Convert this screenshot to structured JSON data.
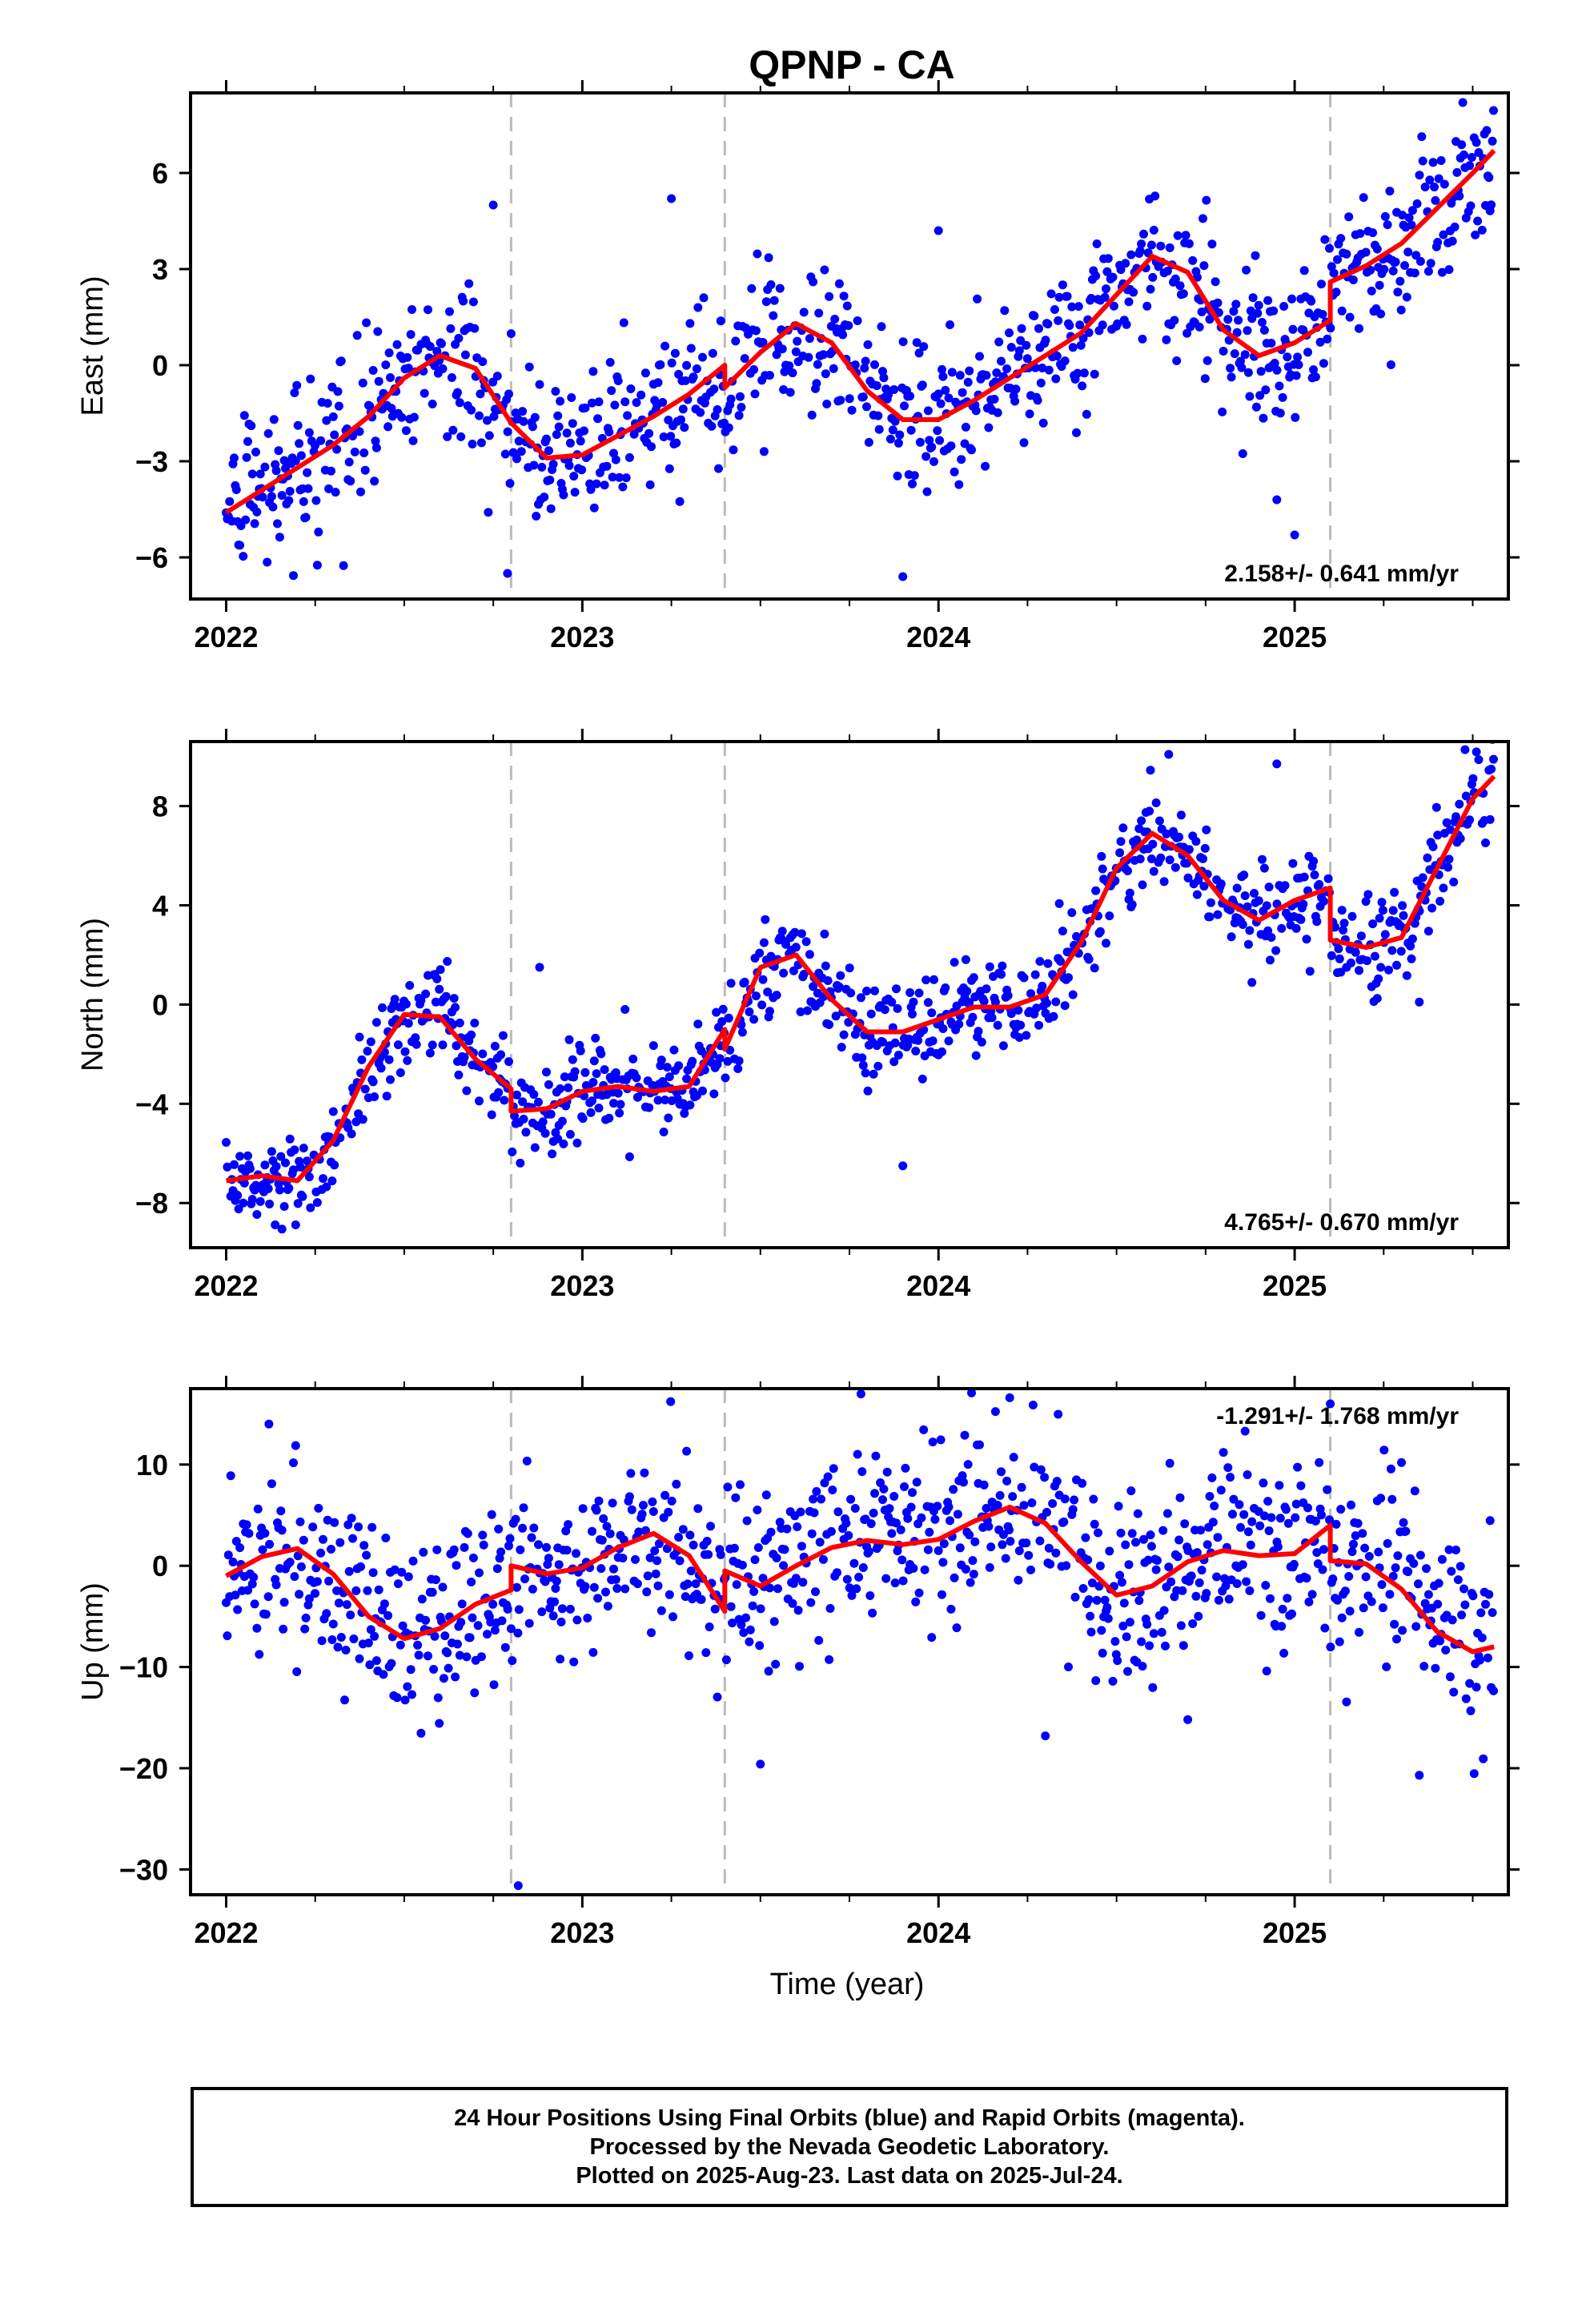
{
  "title": "QPNP - CA",
  "xlabel": "Time (year)",
  "footer": {
    "line1": "24 Hour Positions Using Final Orbits (blue) and Rapid Orbits (magenta).",
    "line2": "Processed by the Nevada Geodetic Laboratory.",
    "line3": "Plotted on 2025-Aug-23. Last data on 2025-Jul-24."
  },
  "colors": {
    "data_points": "#0000ff",
    "model_fit": "#ff0000",
    "event_lines": "#bbbbbb"
  },
  "chart_data": [
    {
      "type": "scatter",
      "name": "east",
      "ylabel": "East (mm)",
      "xlim": [
        1.9,
        5.6
      ],
      "ylim": [
        -7.3,
        8.5
      ],
      "xticks": [
        {
          "value": 2.0,
          "label": "2022"
        },
        {
          "value": 3.0,
          "label": "2023"
        },
        {
          "value": 4.0,
          "label": "2024"
        },
        {
          "value": 5.0,
          "label": "2025"
        }
      ],
      "yticks": [
        {
          "value": -6,
          "label": "−6"
        },
        {
          "value": -3,
          "label": "−3"
        },
        {
          "value": 0,
          "label": "0"
        },
        {
          "value": 3,
          "label": "3"
        },
        {
          "value": 6,
          "label": "6"
        }
      ],
      "rate_text": "2.158+/- 0.641 mm/yr",
      "rate_position": "bottom-right",
      "event_lines": [
        2.8,
        3.4,
        5.1
      ],
      "scatter_sigma": 1.15,
      "outliers": [
        [
          2.75,
          5.0
        ],
        [
          2.79,
          -6.5
        ],
        [
          3.25,
          5.2
        ],
        [
          3.9,
          -6.6
        ],
        [
          4.0,
          4.2
        ],
        [
          5.0,
          -5.3
        ],
        [
          4.95,
          -4.2
        ]
      ],
      "fit": [
        [
          2.0,
          -4.6
        ],
        [
          2.1,
          -3.9
        ],
        [
          2.2,
          -3.2
        ],
        [
          2.3,
          -2.5
        ],
        [
          2.4,
          -1.6
        ],
        [
          2.5,
          -0.4
        ],
        [
          2.6,
          0.3
        ],
        [
          2.7,
          -0.1
        ],
        [
          2.8,
          -1.8
        ],
        [
          2.9,
          -2.9
        ],
        [
          3.0,
          -2.8
        ],
        [
          3.1,
          -2.2
        ],
        [
          3.2,
          -1.6
        ],
        [
          3.3,
          -0.9
        ],
        [
          3.4,
          0.0
        ],
        [
          3.4,
          -0.7
        ],
        [
          3.5,
          0.4
        ],
        [
          3.6,
          1.3
        ],
        [
          3.7,
          0.7
        ],
        [
          3.8,
          -0.8
        ],
        [
          3.9,
          -1.7
        ],
        [
          4.0,
          -1.7
        ],
        [
          4.1,
          -1.1
        ],
        [
          4.2,
          -0.4
        ],
        [
          4.3,
          0.3
        ],
        [
          4.4,
          1.0
        ],
        [
          4.5,
          2.2
        ],
        [
          4.6,
          3.4
        ],
        [
          4.7,
          2.9
        ],
        [
          4.8,
          1.1
        ],
        [
          4.9,
          0.3
        ],
        [
          5.0,
          0.7
        ],
        [
          5.1,
          1.4
        ],
        [
          5.1,
          2.6
        ],
        [
          5.2,
          3.1
        ],
        [
          5.3,
          3.8
        ],
        [
          5.4,
          4.9
        ],
        [
          5.5,
          6.0
        ],
        [
          5.56,
          6.7
        ]
      ]
    },
    {
      "type": "scatter",
      "name": "north",
      "ylabel": "North (mm)",
      "xlim": [
        1.9,
        5.6
      ],
      "ylim": [
        -9.8,
        10.6
      ],
      "xticks": [
        {
          "value": 2.0,
          "label": "2022"
        },
        {
          "value": 3.0,
          "label": "2023"
        },
        {
          "value": 4.0,
          "label": "2024"
        },
        {
          "value": 5.0,
          "label": "2025"
        }
      ],
      "yticks": [
        {
          "value": -8,
          "label": "−8"
        },
        {
          "value": -4,
          "label": "−4"
        },
        {
          "value": 0,
          "label": "0"
        },
        {
          "value": 4,
          "label": "4"
        },
        {
          "value": 8,
          "label": "8"
        }
      ],
      "rate_text": "4.765+/- 0.670 mm/yr",
      "rate_position": "bottom-right",
      "event_lines": [
        2.8,
        3.4,
        5.1
      ],
      "scatter_sigma": 0.95,
      "outliers": [
        [
          3.9,
          -6.5
        ],
        [
          4.95,
          9.7
        ],
        [
          5.35,
          0.1
        ],
        [
          2.88,
          1.5
        ]
      ],
      "fit": [
        [
          2.0,
          -7.1
        ],
        [
          2.1,
          -6.9
        ],
        [
          2.2,
          -7.1
        ],
        [
          2.3,
          -5.5
        ],
        [
          2.4,
          -2.5
        ],
        [
          2.5,
          -0.4
        ],
        [
          2.6,
          -0.5
        ],
        [
          2.7,
          -2.2
        ],
        [
          2.8,
          -3.4
        ],
        [
          2.8,
          -4.3
        ],
        [
          2.9,
          -4.2
        ],
        [
          3.0,
          -3.5
        ],
        [
          3.1,
          -3.3
        ],
        [
          3.2,
          -3.5
        ],
        [
          3.3,
          -3.3
        ],
        [
          3.4,
          -1.0
        ],
        [
          3.4,
          -1.8
        ],
        [
          3.5,
          1.5
        ],
        [
          3.6,
          2.0
        ],
        [
          3.7,
          0.2
        ],
        [
          3.8,
          -1.1
        ],
        [
          3.9,
          -1.1
        ],
        [
          4.0,
          -0.6
        ],
        [
          4.1,
          -0.1
        ],
        [
          4.2,
          -0.1
        ],
        [
          4.3,
          0.4
        ],
        [
          4.4,
          2.5
        ],
        [
          4.5,
          5.5
        ],
        [
          4.6,
          6.9
        ],
        [
          4.7,
          6.0
        ],
        [
          4.8,
          4.2
        ],
        [
          4.9,
          3.4
        ],
        [
          5.0,
          4.2
        ],
        [
          5.1,
          4.7
        ],
        [
          5.1,
          2.6
        ],
        [
          5.2,
          2.3
        ],
        [
          5.3,
          2.7
        ],
        [
          5.4,
          5.5
        ],
        [
          5.5,
          8.3
        ],
        [
          5.56,
          9.2
        ]
      ]
    },
    {
      "type": "scatter",
      "name": "up",
      "ylabel": "Up (mm)",
      "xlim": [
        1.9,
        5.6
      ],
      "ylim": [
        -32.5,
        17.5
      ],
      "xticks": [
        {
          "value": 2.0,
          "label": "2022"
        },
        {
          "value": 3.0,
          "label": "2023"
        },
        {
          "value": 4.0,
          "label": "2024"
        },
        {
          "value": 5.0,
          "label": "2025"
        }
      ],
      "yticks": [
        {
          "value": -30,
          "label": "−30"
        },
        {
          "value": -20,
          "label": "−20"
        },
        {
          "value": -10,
          "label": "−10"
        },
        {
          "value": 0,
          "label": "0"
        },
        {
          "value": 10,
          "label": "10"
        }
      ],
      "rate_text": "-1.291+/- 1.768 mm/yr",
      "rate_position": "top-right",
      "event_lines": [
        2.8,
        3.4,
        5.1
      ],
      "scatter_sigma": 4.6,
      "outliers": [
        [
          2.82,
          -31.6
        ],
        [
          2.12,
          14.0
        ],
        [
          3.5,
          -19.6
        ],
        [
          4.2,
          16.6
        ],
        [
          5.35,
          -20.7
        ],
        [
          4.3,
          -16.8
        ],
        [
          4.7,
          -15.2
        ],
        [
          5.1,
          16.0
        ],
        [
          5.3,
          10.2
        ]
      ],
      "fit": [
        [
          2.0,
          -1.0
        ],
        [
          2.1,
          0.9
        ],
        [
          2.2,
          1.7
        ],
        [
          2.3,
          -0.8
        ],
        [
          2.4,
          -5.0
        ],
        [
          2.5,
          -7.2
        ],
        [
          2.6,
          -6.2
        ],
        [
          2.7,
          -3.8
        ],
        [
          2.8,
          -2.4
        ],
        [
          2.8,
          0.0
        ],
        [
          2.9,
          -0.8
        ],
        [
          3.0,
          -0.2
        ],
        [
          3.1,
          1.8
        ],
        [
          3.2,
          3.2
        ],
        [
          3.3,
          1.0
        ],
        [
          3.4,
          -4.5
        ],
        [
          3.4,
          -0.5
        ],
        [
          3.5,
          -2.0
        ],
        [
          3.6,
          0.0
        ],
        [
          3.7,
          1.8
        ],
        [
          3.8,
          2.5
        ],
        [
          3.9,
          2.1
        ],
        [
          4.0,
          2.6
        ],
        [
          4.1,
          4.4
        ],
        [
          4.2,
          5.8
        ],
        [
          4.3,
          4.2
        ],
        [
          4.4,
          0.4
        ],
        [
          4.5,
          -2.9
        ],
        [
          4.6,
          -2.0
        ],
        [
          4.7,
          0.4
        ],
        [
          4.8,
          1.5
        ],
        [
          4.9,
          1.0
        ],
        [
          5.0,
          1.2
        ],
        [
          5.1,
          4.0
        ],
        [
          5.1,
          0.5
        ],
        [
          5.2,
          0.2
        ],
        [
          5.3,
          -2.3
        ],
        [
          5.4,
          -6.5
        ],
        [
          5.5,
          -8.5
        ],
        [
          5.56,
          -8.0
        ]
      ]
    }
  ]
}
